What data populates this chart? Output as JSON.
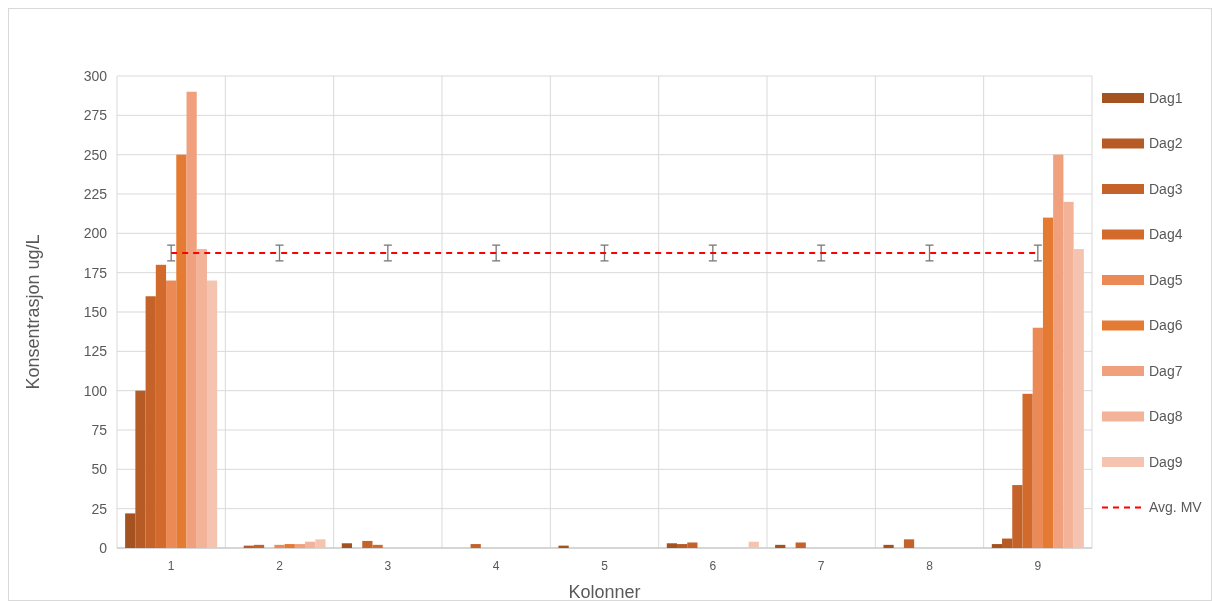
{
  "chart_data": {
    "type": "bar",
    "xlabel": "Kolonner",
    "ylabel": "Konsentrasjon ug/L",
    "categories": [
      "1",
      "2",
      "3",
      "4",
      "5",
      "6",
      "7",
      "8",
      "9"
    ],
    "ylim": [
      0,
      300
    ],
    "yticks": [
      0,
      25,
      50,
      75,
      100,
      125,
      150,
      175,
      200,
      225,
      250,
      275,
      300
    ],
    "grid": true,
    "legend": "right",
    "series": [
      {
        "name": "Dag1",
        "color": "#a4521f",
        "values": [
          22,
          0,
          3,
          0,
          1.5,
          3,
          2,
          2,
          2.5
        ]
      },
      {
        "name": "Dag2",
        "color": "#b65a26",
        "values": [
          100,
          1.5,
          0,
          0,
          0,
          2.5,
          0,
          0,
          6
        ]
      },
      {
        "name": "Dag3",
        "color": "#c4622a",
        "values": [
          160,
          2,
          4.5,
          2.5,
          0,
          3.5,
          3.5,
          5.5,
          40
        ]
      },
      {
        "name": "Dag4",
        "color": "#d26a2b",
        "values": [
          180,
          0,
          2,
          0,
          0,
          0,
          0,
          0,
          98
        ]
      },
      {
        "name": "Dag5",
        "color": "#ec8a55",
        "values": [
          170,
          2,
          0,
          0,
          0,
          0,
          0,
          0,
          140
        ]
      },
      {
        "name": "Dag6",
        "color": "#e57a32",
        "values": [
          250,
          2.5,
          0,
          0,
          0,
          0,
          0,
          0,
          210
        ]
      },
      {
        "name": "Dag7",
        "color": "#f0a07c",
        "values": [
          290,
          2.5,
          0,
          0,
          0,
          0,
          0,
          0,
          250
        ]
      },
      {
        "name": "Dag8",
        "color": "#f2b398",
        "values": [
          190,
          4,
          0,
          0,
          0,
          0,
          0,
          0,
          220
        ]
      },
      {
        "name": "Dag9",
        "color": "#f5c4b0",
        "values": [
          170,
          5.5,
          0,
          0,
          0,
          4,
          0,
          0,
          190
        ]
      },
      {
        "name": "Avg. MV",
        "type": "line",
        "color": "#ff0000",
        "line_style": "dashed",
        "marker": "none",
        "values": [
          187.5,
          187.5,
          187.5,
          187.5,
          187.5,
          187.5,
          187.5,
          187.5,
          187.5
        ],
        "errors": [
          5,
          5,
          5,
          5,
          5,
          5,
          5,
          5,
          5
        ]
      }
    ]
  }
}
